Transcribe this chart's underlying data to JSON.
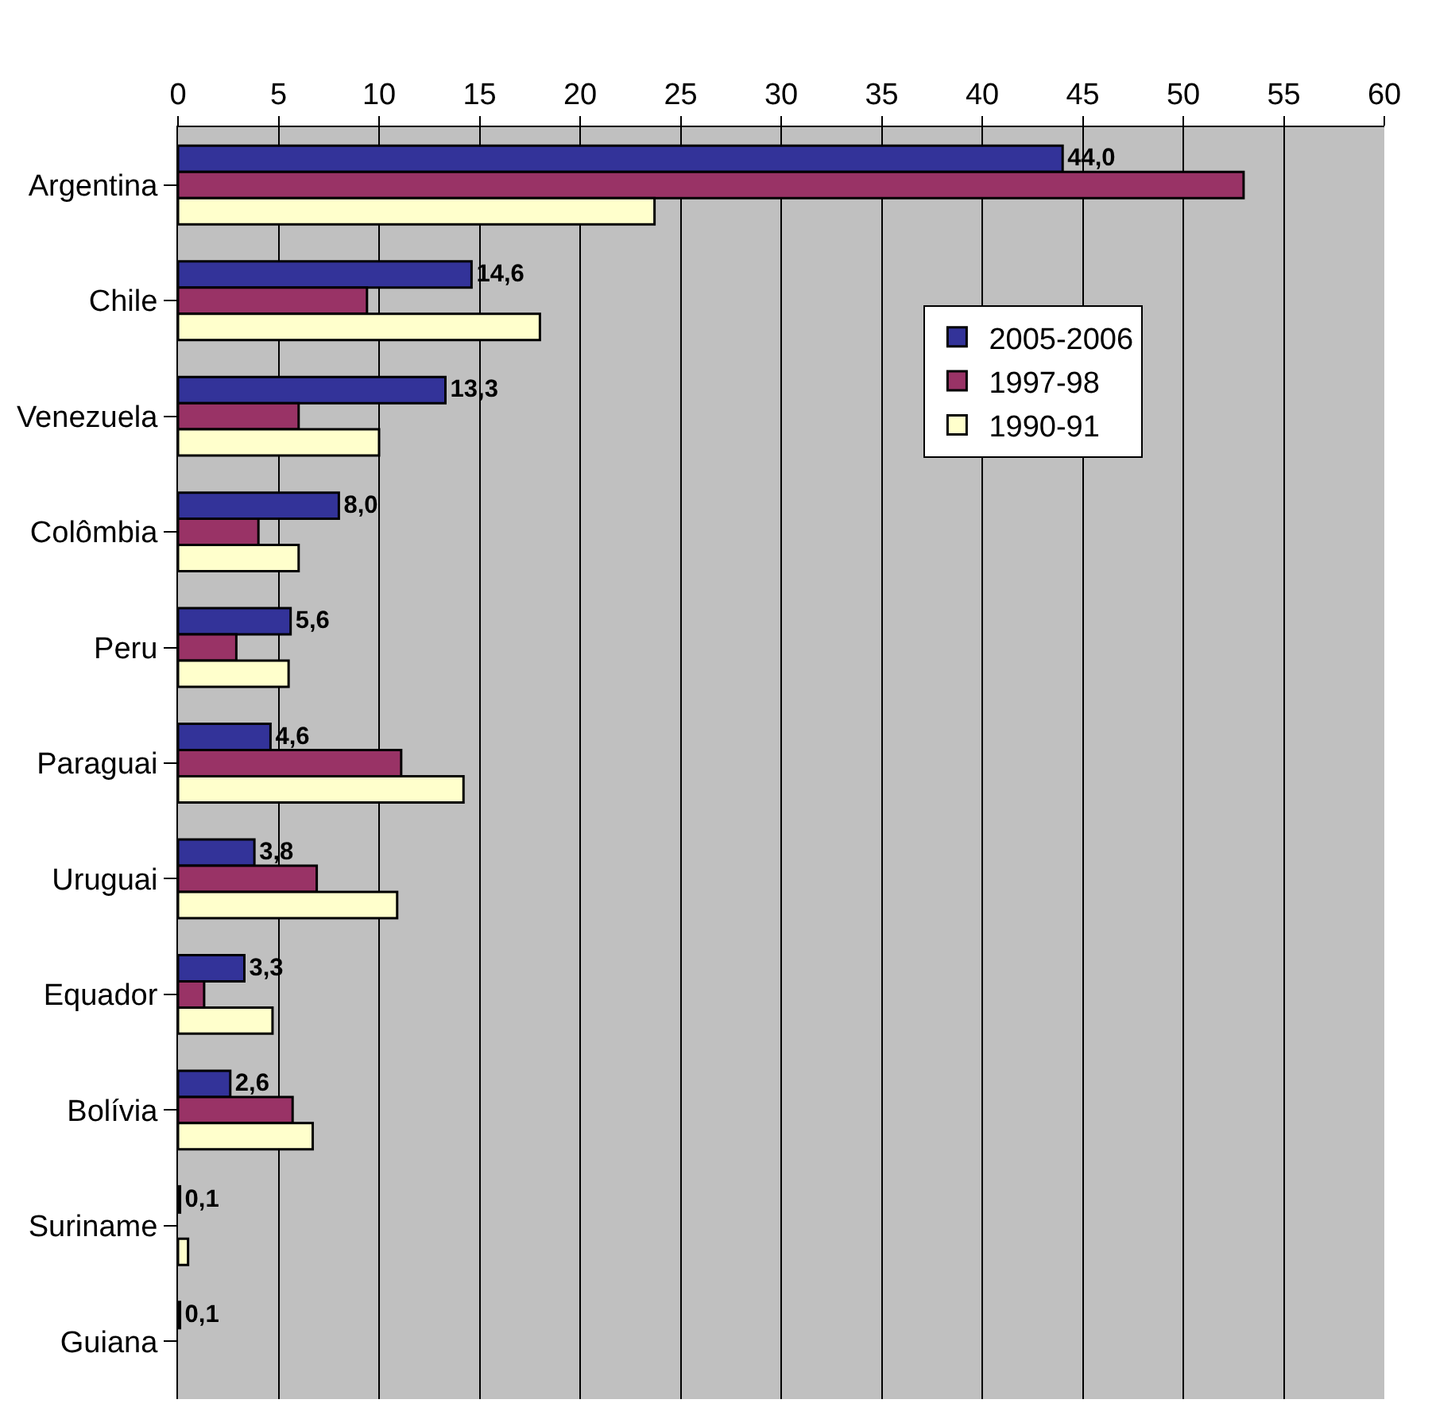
{
  "chart_data": {
    "type": "bar",
    "orientation": "horizontal",
    "categories": [
      "Argentina",
      "Chile",
      "Venezuela",
      "Colômbia",
      "Peru",
      "Paraguai",
      "Uruguai",
      "Equador",
      "Bolívia",
      "Suriname",
      "Guiana"
    ],
    "series": [
      {
        "name": "2005-2006",
        "color": "#333399",
        "values": [
          44.0,
          14.6,
          13.3,
          8.0,
          5.6,
          4.6,
          3.8,
          3.3,
          2.6,
          0.1,
          0.1
        ],
        "value_labels": [
          "44,0",
          "14,6",
          "13,3",
          "8,0",
          "5,6",
          "4,6",
          "3,8",
          "3,3",
          "2,6",
          "0,1",
          "0,1"
        ]
      },
      {
        "name": "1997-98",
        "color": "#993366",
        "values": [
          53.0,
          9.4,
          6.0,
          4.0,
          2.9,
          11.1,
          6.9,
          1.3,
          5.7,
          null,
          null
        ]
      },
      {
        "name": "1990-91",
        "color": "#ffffcc",
        "values": [
          23.7,
          18.0,
          10.0,
          6.0,
          5.5,
          14.2,
          10.9,
          4.7,
          6.7,
          0.5,
          null
        ]
      }
    ],
    "xlim": [
      0,
      60
    ],
    "xticks": [
      0,
      5,
      10,
      15,
      20,
      25,
      30,
      35,
      40,
      45,
      50,
      55,
      60
    ],
    "grid": "x",
    "legend": "top right"
  }
}
